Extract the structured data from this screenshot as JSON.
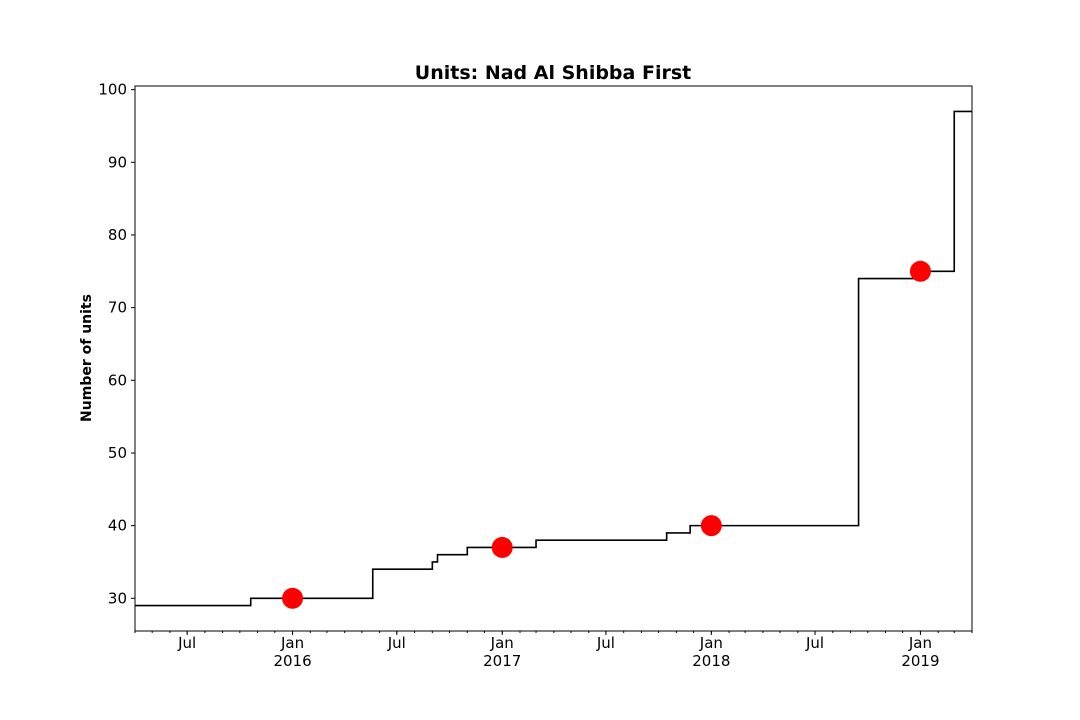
{
  "chart_data": {
    "type": "line",
    "title": "Units: Nad Al Shibba First",
    "xlabel": "",
    "ylabel": "Number of units",
    "xlim": [
      "2015-04-01",
      "2019-04-01"
    ],
    "ylim": [
      25.5,
      100.5
    ],
    "y_ticks": [
      30,
      40,
      50,
      60,
      70,
      80,
      90,
      100
    ],
    "x_ticks": [
      {
        "date": "2015-07-01",
        "label": "Jul",
        "year": ""
      },
      {
        "date": "2016-01-01",
        "label": "Jan",
        "year": "2016"
      },
      {
        "date": "2016-07-01",
        "label": "Jul",
        "year": ""
      },
      {
        "date": "2017-01-01",
        "label": "Jan",
        "year": "2017"
      },
      {
        "date": "2017-07-01",
        "label": "Jul",
        "year": ""
      },
      {
        "date": "2018-01-01",
        "label": "Jan",
        "year": "2018"
      },
      {
        "date": "2018-07-01",
        "label": "Jul",
        "year": ""
      },
      {
        "date": "2019-01-01",
        "label": "Jan",
        "year": "2019"
      }
    ],
    "grid": false,
    "series": [
      {
        "style": "step-post",
        "color": "#000000",
        "points": [
          [
            "2015-04-01",
            29
          ],
          [
            "2015-10-20",
            30
          ],
          [
            "2016-05-20",
            34
          ],
          [
            "2016-09-01",
            35
          ],
          [
            "2016-09-10",
            36
          ],
          [
            "2016-11-01",
            37
          ],
          [
            "2017-03-01",
            38
          ],
          [
            "2017-10-15",
            39
          ],
          [
            "2017-11-25",
            40
          ],
          [
            "2018-09-15",
            74
          ],
          [
            "2018-12-25",
            75
          ],
          [
            "2019-03-01",
            97
          ],
          [
            "2019-04-01",
            97
          ]
        ]
      },
      {
        "style": "markers",
        "color": "#ff0000",
        "points": [
          [
            "2016-01-01",
            30
          ],
          [
            "2017-01-01",
            37
          ],
          [
            "2018-01-01",
            40
          ],
          [
            "2019-01-01",
            75
          ]
        ]
      }
    ]
  }
}
